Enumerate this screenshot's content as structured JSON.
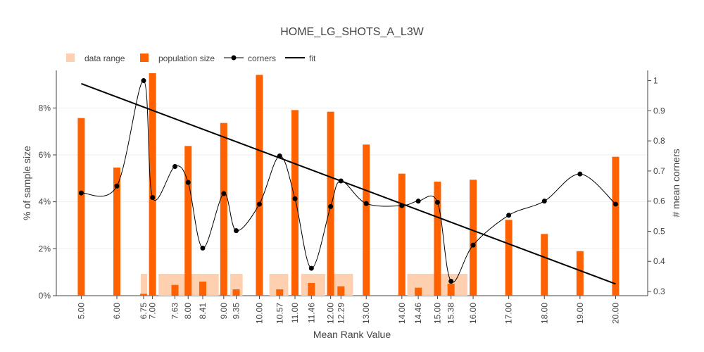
{
  "chart_data": {
    "type": "bar",
    "title": "HOME_LG_SHOTS_A_L3W",
    "xlabel": "Mean Rank Value",
    "ylabel": "% of sample size",
    "y2label": "# mean corners",
    "ylim": [
      0,
      0.096
    ],
    "y2lim": [
      0.286,
      1.034
    ],
    "xlim": [
      4.3,
      20.9
    ],
    "y_ticks": [
      "0%",
      "2%",
      "4%",
      "6%",
      "8%"
    ],
    "y_tick_values": [
      0,
      0.02,
      0.04,
      0.06,
      0.08
    ],
    "y2_ticks": [
      "0.3",
      "0.4",
      "0.5",
      "0.6",
      "0.7",
      "0.8",
      "0.9",
      "1"
    ],
    "y2_tick_values": [
      0.3,
      0.4,
      0.5,
      0.6,
      0.7,
      0.8,
      0.9,
      1.0
    ],
    "grid": true,
    "legend_position": "top-left",
    "legend": {
      "data_range": "data range",
      "population_size": "population size",
      "corners": "corners",
      "fit": "fit"
    },
    "colors": {
      "data_range": "#ffd0b0",
      "population_size": "#ff6100",
      "corners": "#000000",
      "fit": "#000000",
      "grid": "#eeeeee",
      "text": "#444444"
    },
    "x_tick_labels": [
      "5.00",
      "6.00",
      "6.75",
      "7.00",
      "7.63",
      "8.00",
      "8.41",
      "9.00",
      "9.35",
      "10.00",
      "10.57",
      "11.00",
      "11.46",
      "12.00",
      "12.29",
      "13.00",
      "14.00",
      "14.46",
      "15.00",
      "15.38",
      "16.00",
      "17.00",
      "18.00",
      "19.00",
      "20.00"
    ],
    "x_tick_values": [
      5.0,
      6.0,
      6.75,
      7.0,
      7.63,
      8.0,
      8.41,
      9.0,
      9.35,
      10.0,
      10.57,
      11.0,
      11.46,
      12.0,
      12.29,
      13.0,
      14.0,
      14.46,
      15.0,
      15.38,
      16.0,
      17.0,
      18.0,
      19.0,
      20.0
    ],
    "data_range": [
      {
        "x0": 6.67,
        "x1": 6.85,
        "y": 0.0093
      },
      {
        "x0": 7.17,
        "x1": 8.86,
        "y": 0.0093
      },
      {
        "x0": 9.18,
        "x1": 9.53,
        "y": 0.0093
      },
      {
        "x0": 10.28,
        "x1": 10.81,
        "y": 0.0093
      },
      {
        "x0": 11.17,
        "x1": 11.85,
        "y": 0.0093
      },
      {
        "x0": 11.9,
        "x1": 12.63,
        "y": 0.0093
      }
    ],
    "data_range_right": [
      {
        "x0": 14.15,
        "x1": 15.84,
        "y": 0.0093
      }
    ],
    "population_size": {
      "x": [
        5.0,
        6.0,
        6.75,
        7.0,
        7.63,
        8.0,
        8.41,
        9.0,
        9.35,
        10.0,
        10.57,
        11.0,
        11.46,
        12.0,
        12.29,
        13.0,
        14.0,
        14.46,
        15.0,
        15.38,
        16.0,
        17.0,
        18.0,
        19.0,
        20.0
      ],
      "values": [
        0.0757,
        0.0546,
        0.0008,
        0.0948,
        0.0046,
        0.0638,
        0.006,
        0.0736,
        0.0027,
        0.0941,
        0.0027,
        0.0791,
        0.0054,
        0.0784,
        0.004,
        0.0644,
        0.052,
        0.0034,
        0.0486,
        0.0051,
        0.0494,
        0.0323,
        0.0263,
        0.019,
        0.0592
      ]
    },
    "corners": {
      "x": [
        5.0,
        6.0,
        6.75,
        7.0,
        7.63,
        8.0,
        8.41,
        9.0,
        9.35,
        10.0,
        10.57,
        11.0,
        11.46,
        12.0,
        12.29,
        13.0,
        14.0,
        14.46,
        15.0,
        15.38,
        16.0,
        17.0,
        18.0,
        19.0,
        20.0
      ],
      "values": [
        0.627,
        0.65,
        1.0,
        0.612,
        0.715,
        0.662,
        0.444,
        0.625,
        0.502,
        0.59,
        0.75,
        0.608,
        0.377,
        0.582,
        0.667,
        0.592,
        0.585,
        0.6,
        0.596,
        0.334,
        0.454,
        0.553,
        0.6,
        0.69,
        0.59
      ]
    },
    "fit": {
      "x": [
        5.0,
        20.0
      ],
      "values": [
        0.99,
        0.325
      ]
    }
  }
}
